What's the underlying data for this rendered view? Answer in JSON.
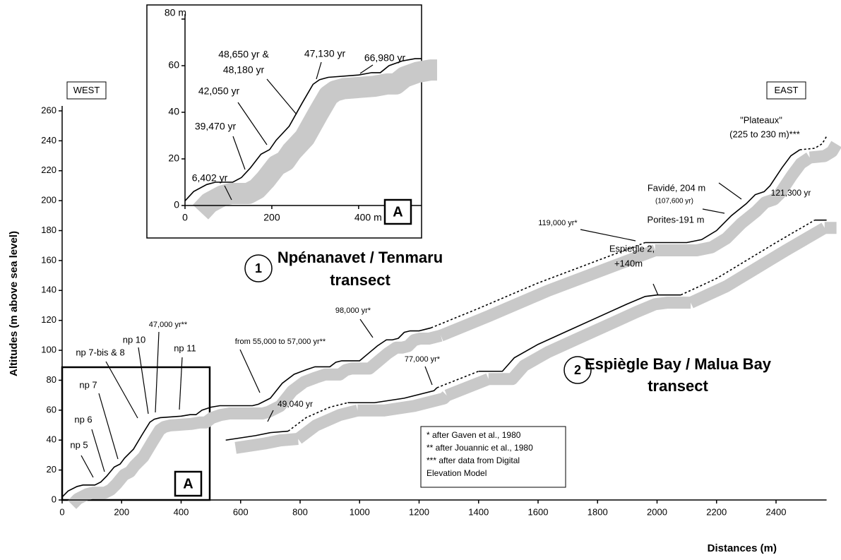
{
  "chart_data": [
    {
      "type": "line",
      "y_label": "Altitudes (m above sea level)",
      "x_label": "Distances (m)",
      "xlim": [
        0,
        2570
      ],
      "ylim": [
        0,
        260
      ],
      "xticks": [
        0,
        200,
        400,
        600,
        800,
        1000,
        1200,
        1400,
        1600,
        1800,
        2000,
        2200,
        2400
      ],
      "yticks": [
        0,
        20,
        40,
        60,
        80,
        100,
        120,
        140,
        160,
        180,
        200,
        220,
        240,
        260
      ],
      "shade_color": "#c9c9c9",
      "series": [
        {
          "style": "solid",
          "color": "#000000",
          "x": [
            0,
            20,
            50,
            70,
            110,
            130,
            150,
            175,
            195,
            210,
            240,
            270,
            295,
            310,
            330,
            400,
            430,
            450,
            470,
            500,
            530,
            640,
            660,
            700,
            740,
            780,
            820,
            850,
            900,
            920,
            940,
            1000,
            1030,
            1060,
            1090,
            1110,
            1130,
            1150,
            1170,
            1200,
            1240
          ],
          "values": [
            2,
            6,
            9,
            10,
            10,
            12,
            16,
            22,
            24,
            28,
            34,
            44,
            52,
            54,
            55,
            56,
            57,
            57,
            60,
            62,
            63,
            63,
            64,
            68,
            78,
            84,
            87,
            89,
            89,
            92,
            93,
            93,
            98,
            103,
            107,
            107,
            108,
            112,
            113,
            113,
            115
          ]
        },
        {
          "style": "dashed",
          "color": "#000000",
          "x": [
            1240,
            1400,
            1600,
            1800,
            1960
          ],
          "values": [
            115,
            128,
            145,
            160,
            172
          ]
        },
        {
          "style": "solid",
          "color": "#000000",
          "x": [
            1960,
            2000,
            2100,
            2150,
            2200,
            2250,
            2300,
            2330,
            2360,
            2380,
            2420,
            2450,
            2480
          ],
          "values": [
            172,
            172,
            172,
            174,
            180,
            190,
            198,
            204,
            206,
            210,
            222,
            230,
            234
          ]
        },
        {
          "style": "dashed",
          "color": "#000000",
          "x": [
            2480,
            2530,
            2555,
            2570
          ],
          "values": [
            234,
            235,
            238,
            243
          ]
        },
        {
          "style": "solid",
          "color": "#000000",
          "x": [
            550,
            650,
            700,
            760
          ],
          "values": [
            40,
            43,
            45,
            46
          ]
        },
        {
          "style": "dashed",
          "color": "#000000",
          "x": [
            760,
            820,
            900,
            960
          ],
          "values": [
            46,
            55,
            62,
            65
          ]
        },
        {
          "style": "solid",
          "color": "#000000",
          "x": [
            960,
            1050,
            1150,
            1250,
            1260
          ],
          "values": [
            65,
            65,
            68,
            73,
            75
          ]
        },
        {
          "style": "dashed",
          "color": "#000000",
          "x": [
            1260,
            1400
          ],
          "values": [
            75,
            86
          ]
        },
        {
          "style": "solid",
          "color": "#000000",
          "x": [
            1400,
            1480,
            1520,
            1600,
            1700,
            1800,
            1900,
            1960,
            2000,
            2080
          ],
          "values": [
            86,
            86,
            95,
            104,
            113,
            122,
            131,
            136,
            137,
            137
          ]
        },
        {
          "style": "dashed",
          "color": "#000000",
          "x": [
            2080,
            2200,
            2300,
            2400,
            2530
          ],
          "values": [
            137,
            148,
            160,
            172,
            187
          ]
        },
        {
          "style": "solid",
          "color": "#000000",
          "x": [
            2530,
            2570
          ],
          "values": [
            187,
            187
          ]
        }
      ],
      "annotations": [
        "np 5",
        "np 6",
        "np 7",
        "np 7-bis & 8",
        "np 10",
        "47,000 yr**",
        "np 11",
        "from 55,000 to 57,000 yr**",
        "98,000 yr*",
        "119,000 yr*",
        "Favidé, 204 m",
        "(107,600 yr)",
        "Porites-191 m",
        "\"Plateaux\"",
        "(225 to 230 m)***",
        "121,300 yr",
        "Espiegle 2,",
        "+140m",
        "77,000 yr*",
        "49,040 yr"
      ],
      "sides": [
        "WEST",
        "EAST"
      ],
      "transects": [
        {
          "number": "1",
          "name": "Npénanavet / Tenmaru",
          "line2": "transect"
        },
        {
          "number": "2",
          "name": "Espiègle Bay / Malua Bay",
          "line2": "transect"
        }
      ],
      "notes": [
        "* after Gaven et al., 1980",
        "** after Jouannic et al., 1980",
        "*** after data from Digital",
        "Elevation Model"
      ],
      "box_label": "A"
    },
    {
      "type": "line",
      "xlim": [
        0,
        545
      ],
      "ylim": [
        0,
        80
      ],
      "xticks": [
        0,
        200,
        {
          "value": 400,
          "label": "400 m"
        }
      ],
      "yticks": [
        0,
        20,
        40,
        60,
        {
          "value": 80,
          "label": "80 m"
        }
      ],
      "shade_color": "#c9c9c9",
      "series": [
        {
          "style": "solid",
          "color": "#000000",
          "x": [
            0,
            20,
            50,
            70,
            110,
            130,
            150,
            175,
            195,
            210,
            240,
            270,
            295,
            310,
            330,
            400,
            430,
            450,
            470,
            500,
            530,
            545
          ],
          "values": [
            2,
            6,
            9,
            10,
            10,
            12,
            16,
            22,
            24,
            28,
            34,
            44,
            52,
            54,
            55,
            56,
            57,
            57,
            60,
            62,
            63,
            63
          ]
        }
      ],
      "annotations": [
        "6,402 yr",
        "39,470 yr",
        "42,050 yr",
        "48,650 yr &",
        "48,180 yr",
        "47,130 yr",
        "66,980 yr"
      ],
      "box_label": "A"
    }
  ]
}
